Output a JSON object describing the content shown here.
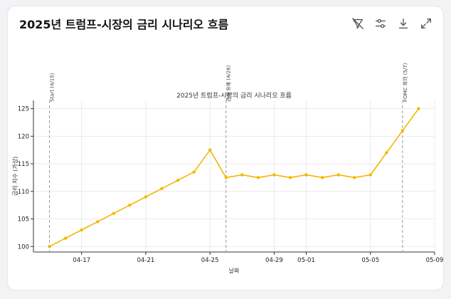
{
  "card": {
    "title": "2025년 트럼프-시장의 금리 시나리오 흐름"
  },
  "toolbar": [
    {
      "name": "hide-code-icon",
      "label": "hide"
    },
    {
      "name": "settings-sliders-icon",
      "label": "settings"
    },
    {
      "name": "download-icon",
      "label": "download"
    },
    {
      "name": "expand-icon",
      "label": "expand"
    }
  ],
  "colors": {
    "line": "#f2b705",
    "marker": "#f2b705",
    "grid": "#e6e6e6",
    "event_line": "#999999",
    "axis": "#333333"
  },
  "chart_data": {
    "type": "line",
    "title": "2025년 트럼프-시장의 금리 시나리오 흐름",
    "xlabel": "날짜",
    "ylabel": "금리 지수 (가상)",
    "x": [
      "2025-04-15",
      "2025-04-16",
      "2025-04-17",
      "2025-04-18",
      "2025-04-19",
      "2025-04-20",
      "2025-04-21",
      "2025-04-22",
      "2025-04-23",
      "2025-04-24",
      "2025-04-25",
      "2025-04-26",
      "2025-04-27",
      "2025-04-28",
      "2025-04-29",
      "2025-04-30",
      "2025-05-01",
      "2025-05-02",
      "2025-05-03",
      "2025-05-04",
      "2025-05-05",
      "2025-05-06",
      "2025-05-07",
      "2025-05-08"
    ],
    "series": [
      {
        "values": [
          100,
          101.5,
          103,
          104.5,
          106,
          107.5,
          109,
          110.5,
          112,
          113.5,
          117.5,
          112.5,
          113,
          112.5,
          113,
          112.5,
          113,
          112.5,
          113,
          112.5,
          113,
          117,
          121,
          125
        ]
      }
    ],
    "xticks": [
      "04-17",
      "04-21",
      "04-25",
      "04-29",
      "05-01",
      "05-05",
      "05-09"
    ],
    "xtick_dates": [
      "2025-04-17",
      "2025-04-21",
      "2025-04-25",
      "2025-04-29",
      "2025-05-01",
      "2025-05-05",
      "2025-05-09"
    ],
    "xlim": [
      "2025-04-14",
      "2025-05-09"
    ],
    "yticks": [
      100,
      105,
      110,
      115,
      120,
      125
    ],
    "ylim": [
      99,
      126.5
    ],
    "grid": true,
    "events": [
      {
        "date": "2025-04-15",
        "label": "Start (4/15)"
      },
      {
        "date": "2025-04-26",
        "label": "관세 유예 (4/26)"
      },
      {
        "date": "2025-05-07",
        "label": "FOMC 회의 (5/7)"
      }
    ]
  }
}
